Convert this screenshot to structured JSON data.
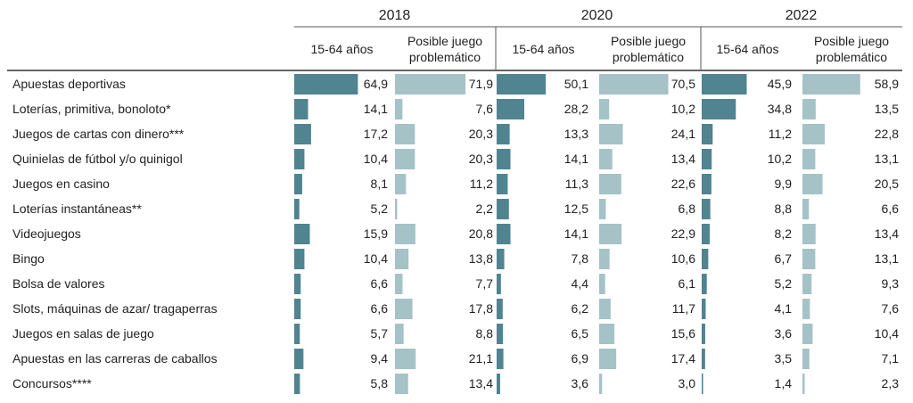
{
  "chart_data": {
    "type": "table",
    "title": "",
    "years": [
      "2018",
      "2020",
      "2022"
    ],
    "subcolumns": {
      "general": "15-64 años",
      "problematic_line1": "Posible juego",
      "problematic_line2": "problemático"
    },
    "categories": [
      "Apuestas deportivas",
      "Loterías, primitiva, bonoloto*",
      "Juegos de cartas con dinero***",
      "Quinielas de fútbol y/o quinigol",
      "Juegos en casino",
      "Loterías instantáneas**",
      "Videojuegos",
      "Bingo",
      "Bolsa de valores",
      "Slots, máquinas de azar/ tragaperras",
      "Juegos en salas de juego",
      "Apuestas en las carreras de caballos",
      "Concursos****"
    ],
    "series": [
      {
        "year": "2018",
        "group": "15-64 años",
        "values": [
          "64,9",
          "14,1",
          "17,2",
          "10,4",
          "8,1",
          "5,2",
          "15,9",
          "10,4",
          "6,6",
          "6,6",
          "5,7",
          "9,4",
          "5,8"
        ]
      },
      {
        "year": "2018",
        "group": "Posible juego problemático",
        "values": [
          "71,9",
          "7,6",
          "20,3",
          "20,3",
          "11,2",
          "2,2",
          "20,8",
          "13,8",
          "7,7",
          "17,8",
          "8,8",
          "21,1",
          "13,4"
        ]
      },
      {
        "year": "2020",
        "group": "15-64 años",
        "values": [
          "50,1",
          "28,2",
          "13,3",
          "14,1",
          "11,3",
          "12,5",
          "14,1",
          "7,8",
          "4,4",
          "6,2",
          "6,5",
          "6,9",
          "3,6"
        ]
      },
      {
        "year": "2020",
        "group": "Posible juego problemático",
        "values": [
          "70,5",
          "10,2",
          "24,1",
          "13,4",
          "22,6",
          "6,8",
          "22,9",
          "10,6",
          "6,1",
          "11,7",
          "15,6",
          "17,4",
          "3,0"
        ]
      },
      {
        "year": "2022",
        "group": "15-64 años",
        "values": [
          "45,9",
          "34,8",
          "11,2",
          "10,2",
          "9,9",
          "8,8",
          "8,2",
          "6,7",
          "5,2",
          "4,1",
          "3,6",
          "3,5",
          "1,4"
        ]
      },
      {
        "year": "2022",
        "group": "Posible juego problemático",
        "values": [
          "58,9",
          "13,5",
          "22,8",
          "13,1",
          "20,5",
          "6,6",
          "13,4",
          "13,1",
          "9,3",
          "7,6",
          "10,4",
          "7,1",
          "2,3"
        ]
      }
    ],
    "colors": {
      "general": "#4f8490",
      "problematic": "#a5c2c7"
    }
  }
}
